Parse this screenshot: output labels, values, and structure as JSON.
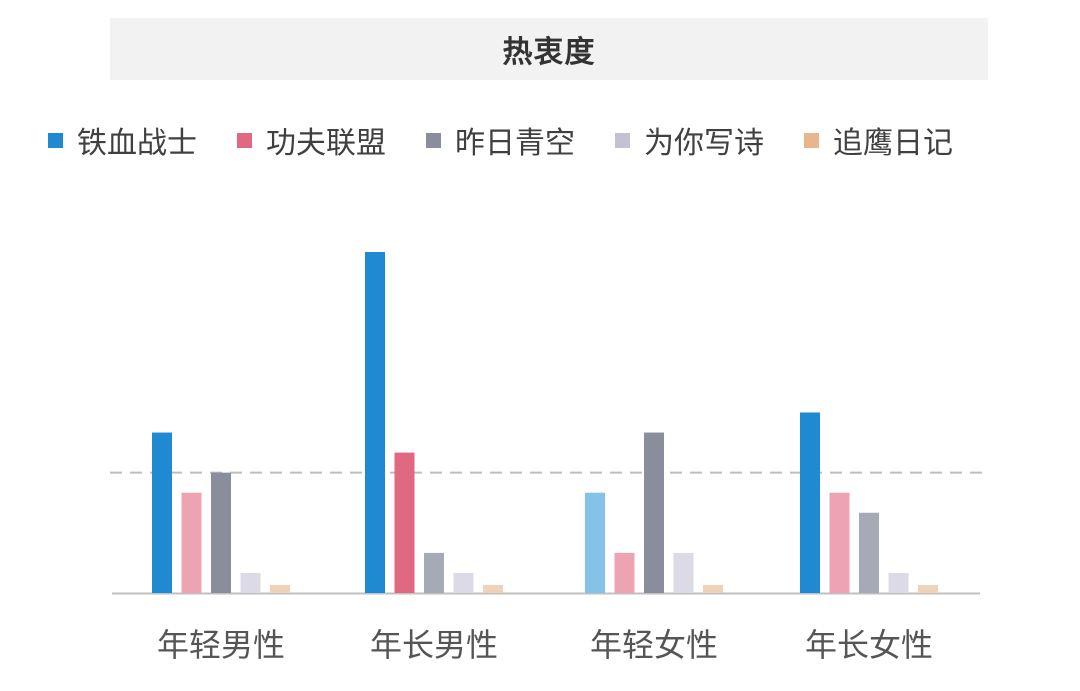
{
  "chart_data": {
    "type": "bar",
    "title": "热衷度",
    "categories": [
      "年轻男性",
      "年长男性",
      "年轻女性",
      "年长女性"
    ],
    "series": [
      {
        "name": "铁血战士",
        "color": "#1f8ad2",
        "values": [
          8.0,
          17.0,
          5.0,
          9.0
        ]
      },
      {
        "name": "功夫联盟",
        "color": "#e06880",
        "values": [
          5.0,
          7.0,
          2.0,
          5.0
        ]
      },
      {
        "name": "昨日青空",
        "color": "#8a8e9c",
        "values": [
          6.0,
          2.0,
          8.0,
          4.0
        ]
      },
      {
        "name": "为你写诗",
        "color": "#c4c2d2",
        "values": [
          1.0,
          1.0,
          2.0,
          1.0
        ]
      },
      {
        "name": "追鹰日记",
        "color": "#e8b58c",
        "values": [
          0.4,
          0.4,
          0.4,
          0.4
        ]
      }
    ],
    "highlight": {
      "年轻男性": [
        "#1f8ad2",
        "#eea3b3",
        "#8a8e9c",
        "#dcdae6",
        "#f0d2b8"
      ],
      "年长男性": [
        "#1f8ad2",
        "#e06880",
        "#a6a9b6",
        "#dcdae6",
        "#f0d2b8"
      ],
      "年轻女性": [
        "#84c2e8",
        "#eea3b3",
        "#8a8e9c",
        "#dcdae6",
        "#f0d2b8"
      ],
      "年长女性": [
        "#1f8ad2",
        "#eea3b3",
        "#a6a9b6",
        "#dcdae6",
        "#f0d2b8"
      ]
    },
    "reference_line": 6,
    "ylim": [
      0,
      17
    ],
    "grid": false,
    "legend_position": "top"
  }
}
